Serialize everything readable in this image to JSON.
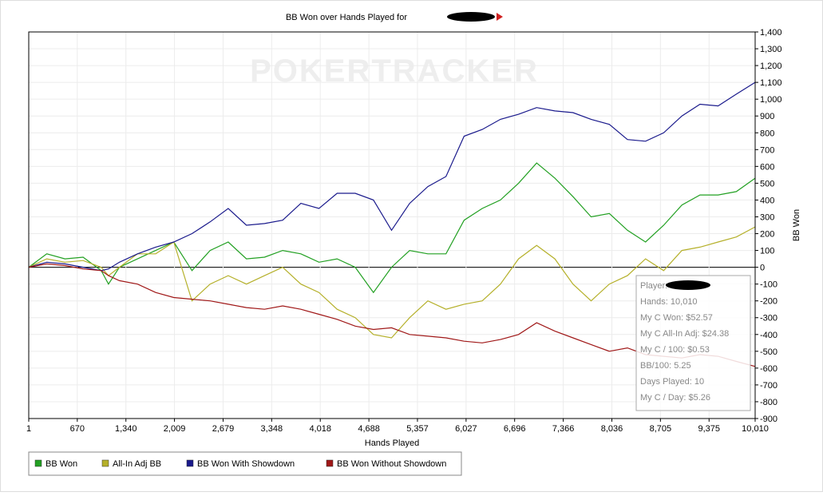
{
  "chart_data": {
    "type": "line",
    "title": "BB Won over Hands Played for",
    "watermark": "POKERTRACKER",
    "x_label": "Hands Played",
    "y_label": "BB Won",
    "xlim": [
      1,
      10010
    ],
    "ylim": [
      -900,
      1400
    ],
    "xticks": [
      1,
      670,
      {
        "value": 1340,
        "label": "1,340"
      },
      {
        "value": 2009,
        "label": "2,009"
      },
      {
        "value": 2679,
        "label": "2,679"
      },
      {
        "value": 3348,
        "label": "3,348"
      },
      {
        "value": 4018,
        "label": "4,018"
      },
      {
        "value": 4688,
        "label": "4,688"
      },
      {
        "value": 5357,
        "label": "5,357"
      },
      {
        "value": 6027,
        "label": "6,027"
      },
      {
        "value": 6696,
        "label": "6,696"
      },
      {
        "value": 7366,
        "label": "7,366"
      },
      {
        "value": 8036,
        "label": "8,036"
      },
      {
        "value": 8705,
        "label": "8,705"
      },
      {
        "value": 9375,
        "label": "9,375"
      },
      {
        "value": 10010,
        "label": "10,010"
      }
    ],
    "yticks": [
      -900,
      -800,
      -700,
      -600,
      -500,
      -400,
      -300,
      -200,
      -100,
      0,
      100,
      200,
      300,
      400,
      500,
      600,
      700,
      800,
      900,
      {
        "value": 1000,
        "label": "1,000"
      },
      {
        "value": 1100,
        "label": "1,100"
      },
      {
        "value": 1200,
        "label": "1,200"
      },
      {
        "value": 1300,
        "label": "1,300"
      },
      {
        "value": 1400,
        "label": "1,400"
      }
    ],
    "grid": true,
    "x": [
      1,
      250,
      500,
      750,
      1000,
      1100,
      1250,
      1500,
      1750,
      2000,
      2250,
      2500,
      2750,
      3000,
      3250,
      3500,
      3750,
      4000,
      4250,
      4500,
      4750,
      5000,
      5250,
      5500,
      5750,
      6000,
      6250,
      6500,
      6750,
      7000,
      7250,
      7500,
      7750,
      8000,
      8250,
      8500,
      8750,
      9000,
      9250,
      9500,
      9750,
      10010
    ],
    "series": [
      {
        "name": "BB Won",
        "color": "#22a022",
        "values": [
          0,
          80,
          50,
          60,
          -20,
          -100,
          0,
          50,
          100,
          150,
          -20,
          100,
          150,
          50,
          60,
          100,
          80,
          30,
          50,
          0,
          -150,
          0,
          100,
          80,
          80,
          280,
          350,
          400,
          500,
          620,
          530,
          420,
          300,
          320,
          220,
          150,
          250,
          370,
          430,
          430,
          450,
          530
        ]
      },
      {
        "name": "All-In Adj BB",
        "color": "#b5b02a",
        "values": [
          0,
          50,
          30,
          40,
          0,
          -50,
          0,
          80,
          80,
          150,
          -200,
          -100,
          -50,
          -100,
          -50,
          0,
          -100,
          -150,
          -250,
          -300,
          -400,
          -420,
          -300,
          -200,
          -250,
          -220,
          -200,
          -100,
          50,
          130,
          50,
          -100,
          -200,
          -100,
          -50,
          50,
          -20,
          100,
          120,
          150,
          180,
          240
        ]
      },
      {
        "name": "BB Won With Showdown",
        "color": "#1a1a8c",
        "values": [
          0,
          30,
          20,
          0,
          -20,
          -10,
          30,
          80,
          120,
          150,
          200,
          270,
          350,
          250,
          260,
          280,
          380,
          350,
          440,
          440,
          400,
          220,
          380,
          480,
          540,
          780,
          820,
          880,
          910,
          950,
          930,
          920,
          880,
          850,
          760,
          750,
          800,
          900,
          970,
          960,
          1030,
          1100
        ]
      },
      {
        "name": "BB Won Without Showdown",
        "color": "#a01818",
        "values": [
          0,
          20,
          10,
          -10,
          -20,
          -50,
          -80,
          -100,
          -150,
          -180,
          -190,
          -200,
          -220,
          -240,
          -250,
          -230,
          -250,
          -280,
          -310,
          -350,
          -370,
          -360,
          -400,
          -410,
          -420,
          -440,
          -450,
          -430,
          -400,
          -330,
          -380,
          -420,
          -460,
          -500,
          -480,
          -520,
          -530,
          -540,
          -520,
          -530,
          -560,
          -590
        ]
      }
    ],
    "info_box": [
      "Player:",
      "Hands: 10,010",
      "My C Won: $52.57",
      "My C All-In Adj: $24.38",
      "My C / 100: $0.53",
      "BB/100: 5.25",
      "Days Played: 10",
      "My C / Day: $5.26"
    ]
  }
}
